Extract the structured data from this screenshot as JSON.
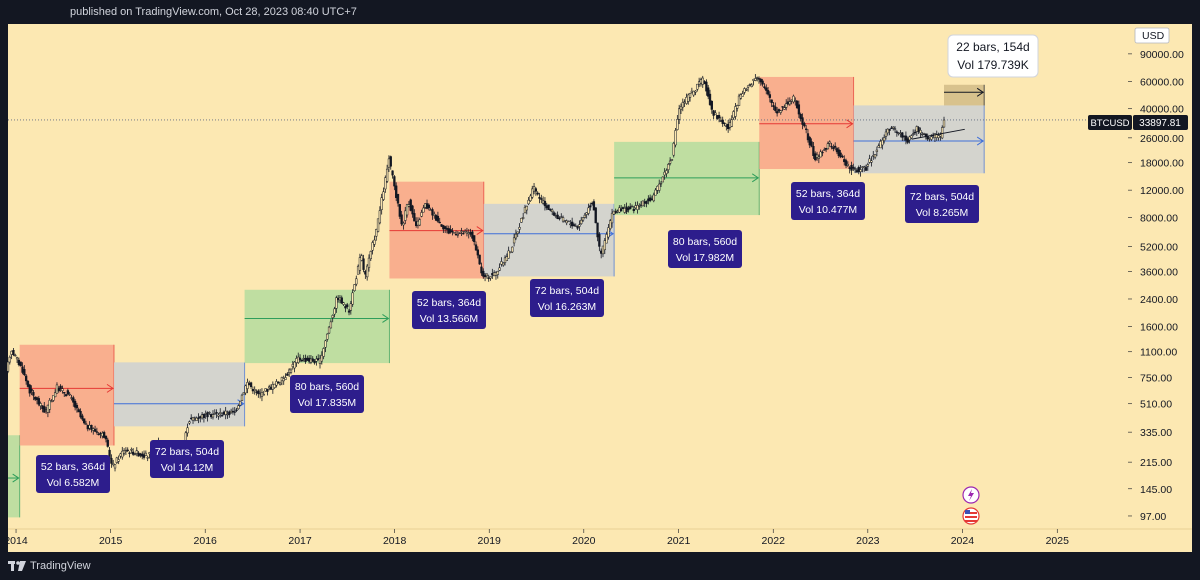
{
  "header": {
    "published": "published on TradingView.com, Oct 28, 2023 08:40 UTC+7"
  },
  "footer": {
    "brand": "TradingView"
  },
  "colors": {
    "background": "#fce8b2",
    "panel": "#131722",
    "candle": "#131722",
    "red_zone": "#f8a98a",
    "grey_zone": "#cfd1d0",
    "green_zone": "#b8dd9e",
    "red_arrow": "#e53935",
    "blue_arrow": "#3f6fd8",
    "green_arrow": "#2e9e5b",
    "label_bg": "#2d1d8c"
  },
  "chart_data": {
    "type": "candlestick",
    "symbol": "BTCUSD",
    "currency": "USD",
    "scale": "log",
    "ylim": [
      80,
      140000
    ],
    "xlim": [
      "2013-12-01",
      "2025-10-01"
    ],
    "last_price": "33897.81",
    "x_ticks": [
      "2014",
      "2015",
      "2016",
      "2017",
      "2018",
      "2019",
      "2020",
      "2021",
      "2022",
      "2023",
      "2024",
      "2025"
    ],
    "y_ticks": [
      "90000.00",
      "60000.00",
      "40000.00",
      "26000.00",
      "18000.00",
      "12000.00",
      "8000.00",
      "5200.00",
      "3600.00",
      "2400.00",
      "1600.00",
      "1100.00",
      "750.00",
      "510.00",
      "335.00",
      "215.00",
      "145.00",
      "97.00"
    ],
    "price_path": [
      [
        "2013-12-01",
        800
      ],
      [
        "2013-12-20",
        1150
      ],
      [
        "2014-02-01",
        850
      ],
      [
        "2014-03-01",
        620
      ],
      [
        "2014-05-01",
        450
      ],
      [
        "2014-06-15",
        650
      ],
      [
        "2014-08-01",
        580
      ],
      [
        "2014-10-01",
        370
      ],
      [
        "2014-12-15",
        320
      ],
      [
        "2015-01-14",
        200
      ],
      [
        "2015-03-01",
        260
      ],
      [
        "2015-06-01",
        235
      ],
      [
        "2015-07-15",
        290
      ],
      [
        "2015-08-25",
        210
      ],
      [
        "2015-10-15",
        270
      ],
      [
        "2015-11-05",
        400
      ],
      [
        "2016-01-01",
        430
      ],
      [
        "2016-05-01",
        450
      ],
      [
        "2016-06-18",
        700
      ],
      [
        "2016-08-01",
        580
      ],
      [
        "2016-11-01",
        730
      ],
      [
        "2017-01-01",
        1000
      ],
      [
        "2017-03-25",
        950
      ],
      [
        "2017-06-01",
        2500
      ],
      [
        "2017-07-15",
        2000
      ],
      [
        "2017-09-01",
        4700
      ],
      [
        "2017-09-15",
        3300
      ],
      [
        "2017-11-01",
        7000
      ],
      [
        "2017-12-17",
        19000
      ],
      [
        "2018-02-06",
        7000
      ],
      [
        "2018-03-01",
        10500
      ],
      [
        "2018-04-01",
        6900
      ],
      [
        "2018-05-05",
        9700
      ],
      [
        "2018-08-01",
        6500
      ],
      [
        "2018-11-01",
        6300
      ],
      [
        "2018-12-15",
        3300
      ],
      [
        "2019-02-01",
        3500
      ],
      [
        "2019-04-01",
        5000
      ],
      [
        "2019-06-26",
        12500
      ],
      [
        "2019-08-01",
        10000
      ],
      [
        "2019-10-01",
        8000
      ],
      [
        "2019-12-15",
        7000
      ],
      [
        "2020-02-12",
        10300
      ],
      [
        "2020-03-12",
        4500
      ],
      [
        "2020-05-01",
        8800
      ],
      [
        "2020-07-20",
        9200
      ],
      [
        "2020-10-01",
        10700
      ],
      [
        "2020-12-15",
        20000
      ],
      [
        "2021-01-08",
        40000
      ],
      [
        "2021-02-15",
        48000
      ],
      [
        "2021-04-14",
        62000
      ],
      [
        "2021-05-20",
        38000
      ],
      [
        "2021-07-20",
        30000
      ],
      [
        "2021-09-01",
        48000
      ],
      [
        "2021-11-10",
        66000
      ],
      [
        "2022-01-20",
        38000
      ],
      [
        "2022-03-28",
        47000
      ],
      [
        "2022-05-10",
        30000
      ],
      [
        "2022-06-18",
        19000
      ],
      [
        "2022-08-15",
        24000
      ],
      [
        "2022-11-09",
        16000
      ],
      [
        "2022-12-30",
        16500
      ],
      [
        "2023-03-20",
        28000
      ],
      [
        "2023-04-14",
        30000
      ],
      [
        "2023-06-15",
        25000
      ],
      [
        "2023-07-15",
        30000
      ],
      [
        "2023-08-20",
        26000
      ],
      [
        "2023-10-15",
        27000
      ],
      [
        "2023-10-27",
        34000
      ]
    ],
    "zones": [
      {
        "kind": "green",
        "start": "2013-12-01",
        "end": "2014-01-15",
        "low": 95,
        "high": 320,
        "arrow_level": 170
      },
      {
        "kind": "red",
        "start": "2014-01-15",
        "end": "2015-01-14",
        "low": 275,
        "high": 1220,
        "arrow_level": 640
      },
      {
        "kind": "grey",
        "start": "2015-01-14",
        "end": "2016-06-01",
        "low": 365,
        "high": 940,
        "arrow_level": 510
      },
      {
        "kind": "green",
        "start": "2016-06-01",
        "end": "2017-12-12",
        "low": 930,
        "high": 2750,
        "arrow_level": 1800
      },
      {
        "kind": "red",
        "start": "2017-12-12",
        "end": "2018-12-11",
        "low": 3250,
        "high": 13600,
        "arrow_level": 6600
      },
      {
        "kind": "grey",
        "start": "2018-12-11",
        "end": "2020-04-27",
        "low": 3350,
        "high": 9800,
        "arrow_level": 6300
      },
      {
        "kind": "green",
        "start": "2020-04-27",
        "end": "2021-11-08",
        "low": 8300,
        "high": 24500,
        "arrow_level": 14400
      },
      {
        "kind": "red",
        "start": "2021-11-08",
        "end": "2022-11-07",
        "low": 16400,
        "high": 64000,
        "arrow_level": 32000
      },
      {
        "kind": "grey",
        "start": "2022-11-07",
        "end": "2024-03-25",
        "low": 15400,
        "high": 42000,
        "arrow_level": 24800
      },
      {
        "kind": "tan",
        "start": "2023-10-22",
        "end": "2024-03-25",
        "low": 42000,
        "high": 57000,
        "arrow_level": 51000
      }
    ],
    "trendline": [
      [
        "2023-06-20",
        25500
      ],
      [
        "2024-01-10",
        29500
      ]
    ],
    "annotations": [
      {
        "line1": "52 bars, 364d",
        "line2": "Vol 6.582M"
      },
      {
        "line1": "72 bars, 504d",
        "line2": "Vol 14.12M"
      },
      {
        "line1": "80 bars, 560d",
        "line2": "Vol 17.835M"
      },
      {
        "line1": "52 bars, 364d",
        "line2": "Vol 13.566M"
      },
      {
        "line1": "72 bars, 504d",
        "line2": "Vol 16.263M"
      },
      {
        "line1": "80 bars, 560d",
        "line2": "Vol 17.982M"
      },
      {
        "line1": "52 bars, 364d",
        "line2": "Vol 10.477M"
      },
      {
        "line1": "72 bars, 504d",
        "line2": "Vol 8.265M"
      }
    ],
    "tooltip": {
      "line1": "22 bars, 154d",
      "line2": "Vol 179.739K"
    }
  }
}
